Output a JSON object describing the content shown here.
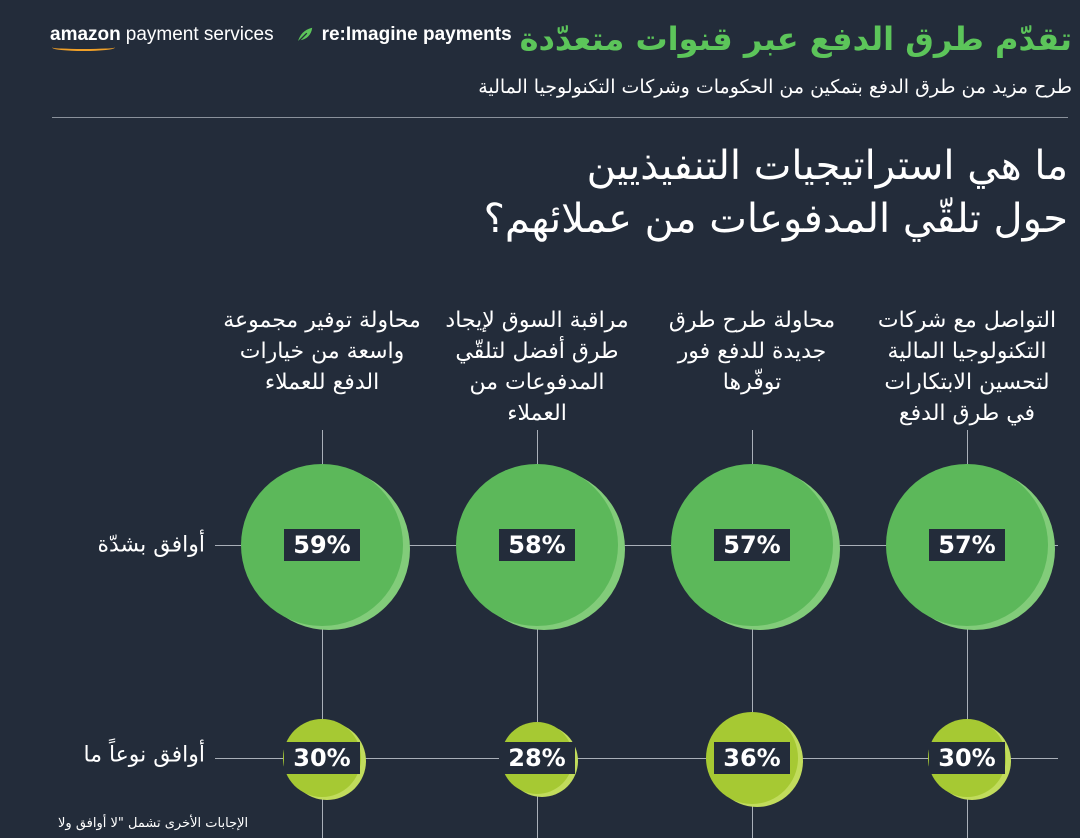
{
  "header": {
    "amazon_logo_word": "amazon",
    "amazon_logo_rest": "payment services",
    "reimagine_label": "re:Imagine payments",
    "title": "تقدّم طرق الدفع عبر قنوات متعدّدة",
    "subtitle": "طرح مزيد من طرق الدفع بتمكين من الحكومات وشركات التكنولوجيا المالية"
  },
  "question": {
    "line1": "ما هي استراتيجيات التنفيذيين",
    "line2": "حول تلقّي المدفوعات من عملائهم؟"
  },
  "columns": [
    {
      "label": "التواصل مع شركات التكنولوجيا المالية لتحسين الابتكارات في طرق الدفع",
      "strongly_agree": "57%",
      "somewhat_agree": "30%"
    },
    {
      "label": "محاولة طرح طرق جديدة للدفع فور توفّرها",
      "strongly_agree": "57%",
      "somewhat_agree": "36%"
    },
    {
      "label": "مراقبة السوق لإيجاد طرق أفضل لتلقّي المدفوعات من العملاء",
      "strongly_agree": "58%",
      "somewhat_agree": "28%"
    },
    {
      "label": "محاولة توفير مجموعة واسعة من خيارات الدفع للعملاء",
      "strongly_agree": "59%",
      "somewhat_agree": "30%"
    }
  ],
  "rows": {
    "strongly_agree_label": "أوافق بشدّة",
    "somewhat_agree_label": "أوافق نوعاً ما"
  },
  "footnote": "الإجابات الأخرى تشمل \"لا أوافق ولا",
  "colors": {
    "background": "#232c3a",
    "title_green": "#5cc55a",
    "strong_bubble": "#5cb85a",
    "somewhat_bubble": "#a6c933",
    "amazon_smile": "#f0a028"
  },
  "icons": {
    "reimagine": "leaf-icon"
  }
}
